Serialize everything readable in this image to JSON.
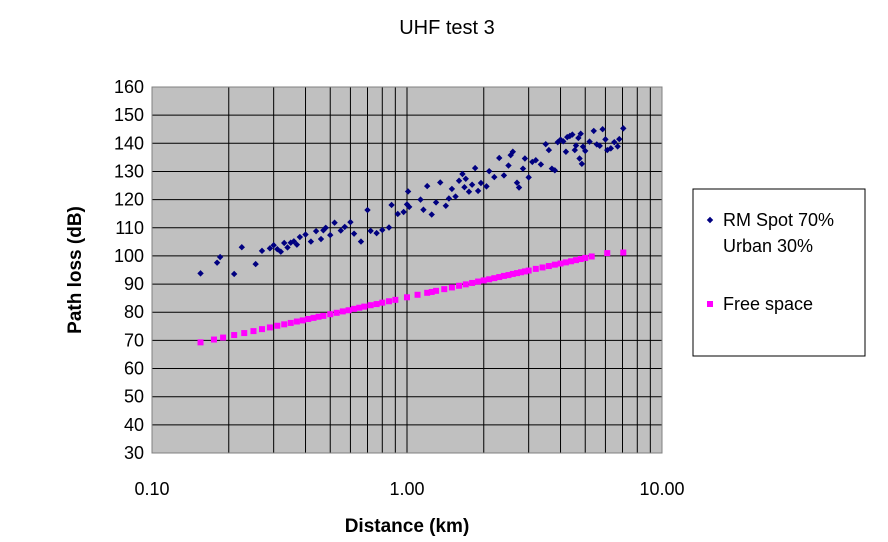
{
  "chart_data": {
    "type": "scatter",
    "title": "UHF test 3",
    "xlabel": "Distance (km)",
    "ylabel": "Path loss (dB)",
    "xscale": "log",
    "xlim": [
      0.1,
      10
    ],
    "ylim": [
      30,
      160
    ],
    "xticks": [
      "0.10",
      "1.00",
      "10.00"
    ],
    "yticks": [
      "30",
      "40",
      "50",
      "60",
      "70",
      "80",
      "90",
      "100",
      "110",
      "120",
      "130",
      "140",
      "150",
      "160"
    ],
    "grid": true,
    "plot_background": "#c0c0c0",
    "legend_position": "right",
    "series": [
      {
        "name_lines": [
          "RM Spot 70%",
          "Urban 30%"
        ],
        "marker": "diamond",
        "color": "#000080",
        "points": [
          [
            0.155,
            93.8
          ],
          [
            0.18,
            97.6
          ],
          [
            0.185,
            99.6
          ],
          [
            0.21,
            93.6
          ],
          [
            0.225,
            103.1
          ],
          [
            0.255,
            97.1
          ],
          [
            0.27,
            101.8
          ],
          [
            0.29,
            102.7
          ],
          [
            0.3,
            103.8
          ],
          [
            0.31,
            102.4
          ],
          [
            0.32,
            101.5
          ],
          [
            0.33,
            104.6
          ],
          [
            0.34,
            103.0
          ],
          [
            0.35,
            104.7
          ],
          [
            0.36,
            105.2
          ],
          [
            0.37,
            104.0
          ],
          [
            0.38,
            106.7
          ],
          [
            0.4,
            107.6
          ],
          [
            0.42,
            105.1
          ],
          [
            0.44,
            108.8
          ],
          [
            0.46,
            106.0
          ],
          [
            0.47,
            109.1
          ],
          [
            0.48,
            110.0
          ],
          [
            0.5,
            107.4
          ],
          [
            0.52,
            111.8
          ],
          [
            0.55,
            109.0
          ],
          [
            0.57,
            110.3
          ],
          [
            0.6,
            112.0
          ],
          [
            0.62,
            107.9
          ],
          [
            0.66,
            105.1
          ],
          [
            0.7,
            116.3
          ],
          [
            0.72,
            108.9
          ],
          [
            0.76,
            108.1
          ],
          [
            0.8,
            109.2
          ],
          [
            0.85,
            110.1
          ],
          [
            0.87,
            118.1
          ],
          [
            0.92,
            114.9
          ],
          [
            0.97,
            115.6
          ],
          [
            1.0,
            118.3
          ],
          [
            1.01,
            122.9
          ],
          [
            1.02,
            117.4
          ],
          [
            1.13,
            120.0
          ],
          [
            1.16,
            116.4
          ],
          [
            1.2,
            124.8
          ],
          [
            1.25,
            114.7
          ],
          [
            1.3,
            119.0
          ],
          [
            1.35,
            126.1
          ],
          [
            1.42,
            117.8
          ],
          [
            1.46,
            120.4
          ],
          [
            1.5,
            123.8
          ],
          [
            1.55,
            121.1
          ],
          [
            1.6,
            126.7
          ],
          [
            1.65,
            129.1
          ],
          [
            1.68,
            124.4
          ],
          [
            1.7,
            127.4
          ],
          [
            1.75,
            122.8
          ],
          [
            1.8,
            125.3
          ],
          [
            1.85,
            131.2
          ],
          [
            1.9,
            123.1
          ],
          [
            1.95,
            125.9
          ],
          [
            2.05,
            124.7
          ],
          [
            2.1,
            130.1
          ],
          [
            2.2,
            128.0
          ],
          [
            2.3,
            134.8
          ],
          [
            2.4,
            128.6
          ],
          [
            2.5,
            132.1
          ],
          [
            2.55,
            135.8
          ],
          [
            2.6,
            137.0
          ],
          [
            2.7,
            126.0
          ],
          [
            2.75,
            124.3
          ],
          [
            2.85,
            131.0
          ],
          [
            2.9,
            134.6
          ],
          [
            3.0,
            127.9
          ],
          [
            3.1,
            133.4
          ],
          [
            3.2,
            134.0
          ],
          [
            3.35,
            132.5
          ],
          [
            3.5,
            139.7
          ],
          [
            3.6,
            137.6
          ],
          [
            3.7,
            131.0
          ],
          [
            3.8,
            130.4
          ],
          [
            3.9,
            140.4
          ],
          [
            4.0,
            141.3
          ],
          [
            4.1,
            140.7
          ],
          [
            4.2,
            137.0
          ],
          [
            4.25,
            142.2
          ],
          [
            4.35,
            142.6
          ],
          [
            4.45,
            143.1
          ],
          [
            4.55,
            137.6
          ],
          [
            4.6,
            139.2
          ],
          [
            4.7,
            141.9
          ],
          [
            4.75,
            134.6
          ],
          [
            4.8,
            143.4
          ],
          [
            4.85,
            132.7
          ],
          [
            4.9,
            138.8
          ],
          [
            5.0,
            137.3
          ],
          [
            5.2,
            140.6
          ],
          [
            5.4,
            144.4
          ],
          [
            5.55,
            139.6
          ],
          [
            5.7,
            139.1
          ],
          [
            5.85,
            145.0
          ],
          [
            6.0,
            141.4
          ],
          [
            6.1,
            137.6
          ],
          [
            6.3,
            138.2
          ],
          [
            6.5,
            140.4
          ],
          [
            6.7,
            138.9
          ],
          [
            6.8,
            141.5
          ],
          [
            7.05,
            145.3
          ]
        ]
      },
      {
        "name_lines": [
          "Free space"
        ],
        "marker": "square",
        "color": "#ff00ff",
        "points": [
          [
            0.155,
            69.3
          ],
          [
            0.175,
            70.3
          ],
          [
            0.19,
            71.0
          ],
          [
            0.21,
            71.9
          ],
          [
            0.23,
            72.6
          ],
          [
            0.25,
            73.3
          ],
          [
            0.27,
            74.0
          ],
          [
            0.29,
            74.6
          ],
          [
            0.31,
            75.2
          ],
          [
            0.33,
            75.7
          ],
          [
            0.35,
            76.2
          ],
          [
            0.37,
            76.7
          ],
          [
            0.39,
            77.1
          ],
          [
            0.41,
            77.6
          ],
          [
            0.43,
            78.0
          ],
          [
            0.45,
            78.4
          ],
          [
            0.47,
            78.7
          ],
          [
            0.5,
            79.3
          ],
          [
            0.53,
            79.8
          ],
          [
            0.56,
            80.3
          ],
          [
            0.59,
            80.7
          ],
          [
            0.62,
            81.2
          ],
          [
            0.65,
            81.6
          ],
          [
            0.68,
            82.0
          ],
          [
            0.72,
            82.5
          ],
          [
            0.76,
            82.9
          ],
          [
            0.8,
            83.4
          ],
          [
            0.85,
            83.9
          ],
          [
            0.9,
            84.4
          ],
          [
            1.0,
            85.3
          ],
          [
            1.1,
            86.2
          ],
          [
            1.2,
            86.9
          ],
          [
            1.25,
            87.2
          ],
          [
            1.3,
            87.6
          ],
          [
            1.4,
            88.2
          ],
          [
            1.5,
            88.8
          ],
          [
            1.6,
            89.4
          ],
          [
            1.7,
            89.9
          ],
          [
            1.8,
            90.4
          ],
          [
            1.9,
            90.9
          ],
          [
            2.0,
            91.3
          ],
          [
            2.1,
            91.7
          ],
          [
            2.2,
            92.1
          ],
          [
            2.3,
            92.5
          ],
          [
            2.4,
            92.9
          ],
          [
            2.5,
            93.2
          ],
          [
            2.6,
            93.6
          ],
          [
            2.7,
            93.9
          ],
          [
            2.8,
            94.2
          ],
          [
            2.9,
            94.5
          ],
          [
            3.0,
            94.8
          ],
          [
            3.2,
            95.4
          ],
          [
            3.4,
            95.9
          ],
          [
            3.6,
            96.4
          ],
          [
            3.8,
            96.9
          ],
          [
            4.0,
            97.3
          ],
          [
            4.2,
            97.7
          ],
          [
            4.4,
            98.1
          ],
          [
            4.6,
            98.5
          ],
          [
            4.8,
            98.9
          ],
          [
            5.0,
            99.3
          ],
          [
            5.3,
            99.8
          ],
          [
            6.1,
            101.0
          ],
          [
            7.05,
            101.2
          ]
        ]
      }
    ]
  }
}
